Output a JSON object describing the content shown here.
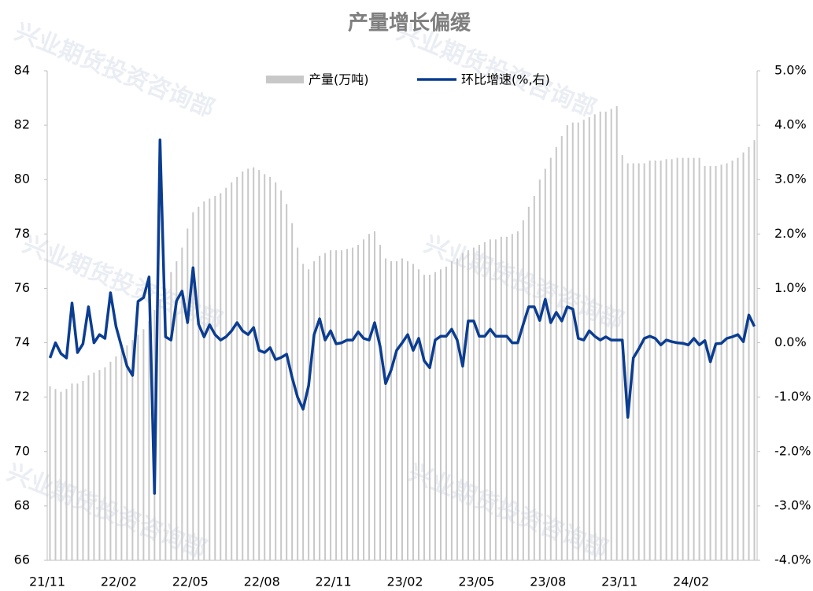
{
  "chart_data": {
    "type": "bar_line",
    "title": "产量增长偏缓",
    "watermark": "兴业期货投资咨询部",
    "categories": [
      "21/11",
      null,
      null,
      null,
      null,
      null,
      null,
      null,
      null,
      null,
      null,
      null,
      null,
      "22/02",
      null,
      null,
      null,
      null,
      null,
      null,
      null,
      null,
      null,
      null,
      null,
      null,
      "22/05",
      null,
      null,
      null,
      null,
      null,
      null,
      null,
      null,
      null,
      null,
      null,
      null,
      "22/08",
      null,
      null,
      null,
      null,
      null,
      null,
      null,
      null,
      null,
      null,
      null,
      null,
      "22/11",
      null,
      null,
      null,
      null,
      null,
      null,
      null,
      null,
      null,
      null,
      null,
      null,
      "23/02",
      null,
      null,
      null,
      null,
      null,
      null,
      null,
      null,
      null,
      null,
      null,
      null,
      "23/05",
      null,
      null,
      null,
      null,
      null,
      null,
      null,
      null,
      null,
      null,
      null,
      null,
      "23/08",
      null,
      null,
      null,
      null,
      null,
      null,
      null,
      null,
      null,
      null,
      null,
      null,
      "23/11",
      null,
      null,
      null,
      null,
      null,
      null,
      null,
      null,
      null,
      null,
      null,
      null,
      "24/02",
      null,
      null,
      null,
      null,
      null,
      null,
      null,
      null,
      null,
      null,
      null
    ],
    "series": [
      {
        "name": "产量(万吨)",
        "color": "#c8c8c8",
        "kind": "bar",
        "axis": "y",
        "values": [
          72.4,
          72.3,
          72.2,
          72.3,
          72.5,
          72.5,
          72.6,
          72.8,
          72.9,
          73.0,
          73.1,
          73.3,
          73.5,
          73.7,
          73.9,
          74.1,
          74.3,
          74.5,
          74.8,
          75.2,
          75.6,
          76.0,
          76.6,
          77.0,
          77.5,
          78.2,
          78.8,
          79.0,
          79.2,
          79.3,
          79.4,
          79.5,
          79.7,
          79.9,
          80.1,
          80.3,
          80.4,
          80.45,
          80.35,
          80.2,
          80.1,
          79.9,
          79.6,
          79.1,
          78.4,
          77.5,
          76.9,
          76.7,
          77.0,
          77.2,
          77.3,
          77.4,
          77.4,
          77.4,
          77.45,
          77.5,
          77.6,
          77.8,
          78.0,
          78.1,
          77.6,
          77.1,
          77.0,
          77.0,
          77.1,
          77.0,
          76.9,
          76.7,
          76.5,
          76.5,
          76.6,
          76.7,
          76.8,
          77.0,
          77.1,
          77.3,
          77.4,
          77.5,
          77.6,
          77.7,
          77.8,
          77.8,
          77.9,
          77.9,
          78.0,
          78.1,
          78.5,
          79.0,
          79.4,
          80.0,
          80.4,
          80.8,
          81.2,
          81.6,
          82.0,
          82.1,
          82.1,
          82.2,
          82.3,
          82.4,
          82.5,
          82.5,
          82.6,
          82.7,
          80.9,
          80.6,
          80.6,
          80.6,
          80.6,
          80.7,
          80.7,
          80.7,
          80.75,
          80.75,
          80.8,
          80.8,
          80.8,
          80.8,
          80.8,
          80.5,
          80.5,
          80.5,
          80.55,
          80.6,
          80.7,
          80.8,
          81.0,
          81.2,
          81.45
        ]
      },
      {
        "name": "环比增速(%,右)",
        "color": "#0b3d91",
        "kind": "line",
        "axis": "y2",
        "values": [
          -0.28,
          0,
          -0.2,
          -0.28,
          0.73,
          -0.18,
          -0.02,
          0.66,
          0,
          0.15,
          0.08,
          0.92,
          0.3,
          -0.07,
          -0.43,
          -0.6,
          0.76,
          0.83,
          1.21,
          -2.77,
          3.73,
          0.11,
          0.05,
          0.77,
          0.95,
          0.37,
          1.38,
          0.34,
          0.11,
          0.33,
          0.15,
          0.05,
          0.11,
          0.22,
          0.37,
          0.22,
          0.15,
          0.28,
          -0.14,
          -0.18,
          -0.09,
          -0.31,
          -0.27,
          -0.21,
          -0.64,
          -1.0,
          -1.22,
          -0.79,
          0.15,
          0.44,
          0.05,
          0.22,
          -0.02,
          0,
          0.05,
          0.05,
          0.2,
          0.08,
          0.05,
          0.37,
          -0.07,
          -0.75,
          -0.5,
          -0.14,
          0,
          0.15,
          -0.14,
          0.08,
          -0.33,
          -0.46,
          0.05,
          0.12,
          0.12,
          0.25,
          0.05,
          -0.43,
          0.4,
          0.4,
          0.12,
          0.12,
          0.25,
          0.12,
          0.12,
          0.12,
          0,
          0,
          0.34,
          0.66,
          0.66,
          0.41,
          0.8,
          0.37,
          0.56,
          0.4,
          0.66,
          0.62,
          0.08,
          0.05,
          0.22,
          0.12,
          0.05,
          0.11,
          0.05,
          0.05,
          0.05,
          -1.37,
          -0.28,
          -0.11,
          0.08,
          0.12,
          0.08,
          -0.04,
          0.05,
          0.02,
          0,
          -0.01,
          -0.04,
          0.08,
          -0.04,
          0.04,
          -0.35,
          -0.02,
          -0.01,
          0.08,
          0.11,
          0.15,
          0.02,
          0.51,
          0.3
        ]
      }
    ],
    "ylim": [
      66,
      84
    ],
    "yticks": [
      66,
      68,
      70,
      72,
      74,
      76,
      78,
      80,
      82,
      84
    ],
    "y2lim": [
      -4,
      5
    ],
    "y2ticks": [
      {
        "value": -4,
        "label": "-4.0%"
      },
      {
        "value": -3,
        "label": "-3.0%"
      },
      {
        "value": -2,
        "label": "-2.0%"
      },
      {
        "value": -1,
        "label": "-1.0%"
      },
      {
        "value": 0,
        "label": "0.0%"
      },
      {
        "value": 1,
        "label": "1.0%"
      },
      {
        "value": 2,
        "label": "2.0%"
      },
      {
        "value": 3,
        "label": "3.0%"
      },
      {
        "value": 4,
        "label": "4.0%"
      },
      {
        "value": 5,
        "label": "5.0%"
      }
    ],
    "legend": "top",
    "grid": false
  }
}
